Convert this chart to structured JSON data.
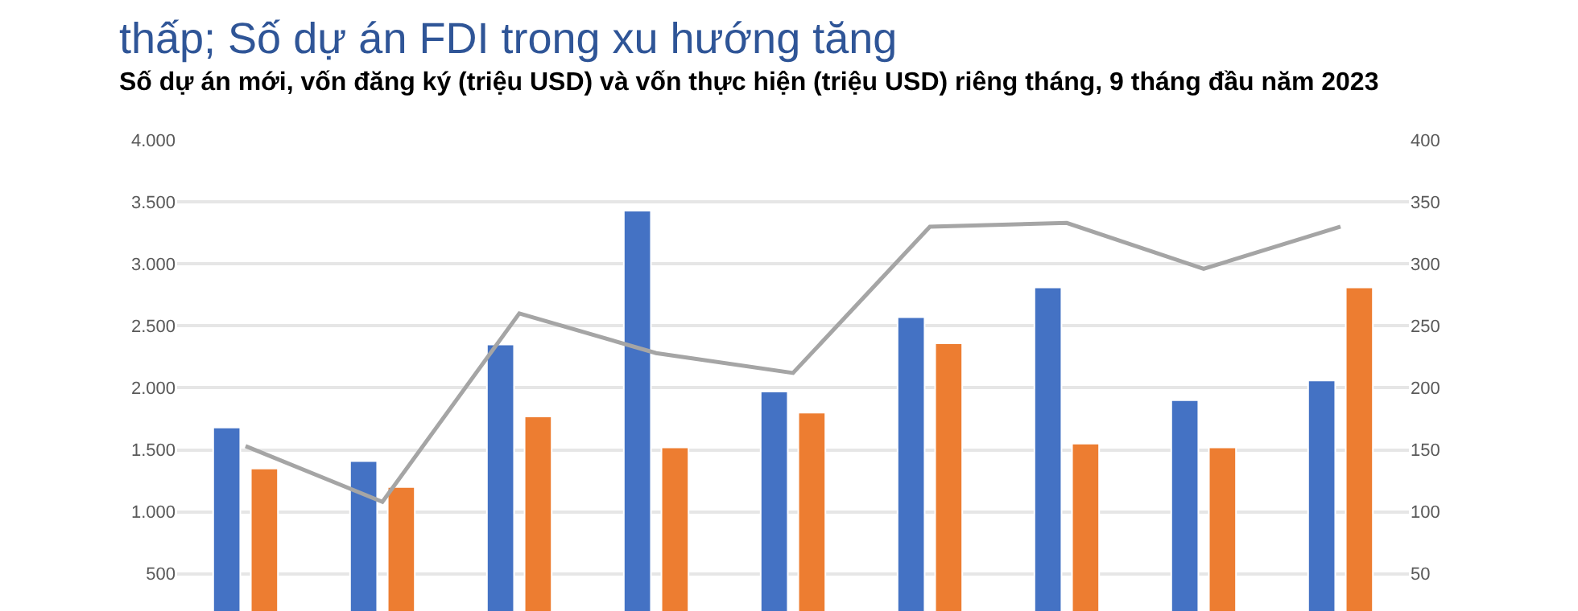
{
  "chart_data": {
    "type": "bar",
    "title": "thấp; Số dự án FDI trong xu hướng tăng",
    "subtitle": "Số dự án mới, vốn đăng ký (triệu USD) và vốn thực hiện (triệu USD) riêng tháng, 9 tháng đầu năm 2023",
    "categories": [
      null,
      null,
      null,
      null,
      null,
      null,
      null,
      null,
      null
    ],
    "series": [
      {
        "color": "#4472c4",
        "values": [
          1680,
          1410,
          2350,
          3430,
          1970,
          2570,
          2810,
          1900,
          2060
        ]
      },
      {
        "color": "#ed7d31",
        "values": [
          1350,
          1200,
          1770,
          1520,
          1800,
          2360,
          1550,
          1520,
          2810
        ]
      },
      {
        "type": "line",
        "axis": "y2",
        "color": "#a5a5a5",
        "values": [
          153,
          108,
          260,
          228,
          212,
          330,
          333,
          296,
          330
        ]
      }
    ],
    "ylim": [
      200,
      4000
    ],
    "yticks": [
      500,
      {
        "value": 1000,
        "label": "1.000"
      },
      {
        "value": 1500,
        "label": "1.500"
      },
      {
        "value": 2000,
        "label": "2.000"
      },
      {
        "value": 2500,
        "label": "2.500"
      },
      {
        "value": 3000,
        "label": "3.000"
      },
      {
        "value": 3500,
        "label": "3.500"
      },
      {
        "value": 4000,
        "label": "4.000"
      }
    ],
    "y2lim": [
      20,
      400
    ],
    "y2ticks": [
      50,
      100,
      150,
      200,
      250,
      300,
      350,
      400
    ],
    "grid": "y",
    "marker": "none"
  }
}
